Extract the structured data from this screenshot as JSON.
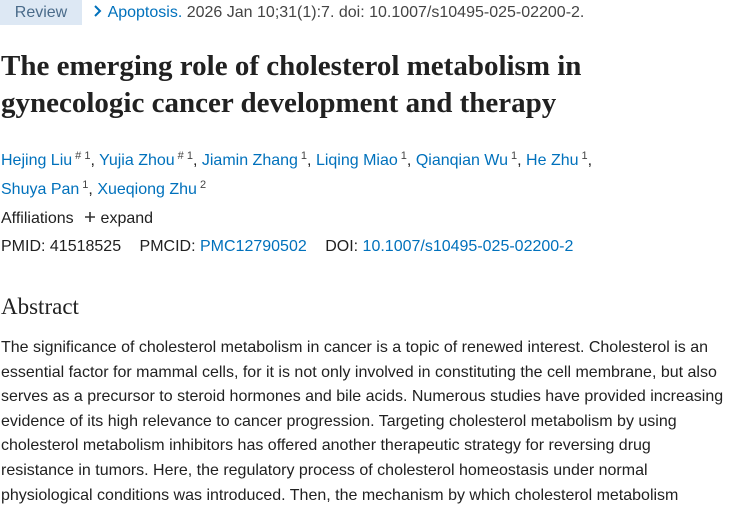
{
  "header": {
    "badge": "Review",
    "journal": "Apoptosis.",
    "citation": "2026 Jan 10;31(1):7. doi: 10.1007/s10495-025-02200-2."
  },
  "title": "The emerging role of cholesterol metabolism in gynecologic cancer development and therapy",
  "authors": {
    "separator": ",",
    "list": [
      {
        "name": "Hejing Liu",
        "sup": "# 1"
      },
      {
        "name": "Yujia Zhou",
        "sup": "# 1"
      },
      {
        "name": "Jiamin Zhang",
        "sup": "1"
      },
      {
        "name": "Liqing Miao",
        "sup": "1"
      },
      {
        "name": "Qianqian Wu",
        "sup": "1"
      },
      {
        "name": "He Zhu",
        "sup": "1"
      },
      {
        "name": "Shuya Pan",
        "sup": "1"
      },
      {
        "name": "Xueqiong Zhu",
        "sup": "2"
      }
    ]
  },
  "affiliations": {
    "label": "Affiliations",
    "action": "expand"
  },
  "identifiers": {
    "pmid_label": "PMID:",
    "pmid": "41518525",
    "pmcid_label": "PMCID:",
    "pmcid": "PMC12790502",
    "doi_label": "DOI:",
    "doi": "10.1007/s10495-025-02200-2"
  },
  "abstract": {
    "heading": "Abstract",
    "lines": [
      "The significance of cholesterol metabolism in cancer is a topic of renewed interest. Cholesterol is an",
      "essential factor for mammal cells, for it is not only involved in constituting the cell membrane, but also",
      "serves as a precursor to steroid hormones and bile acids. Numerous studies have provided increasing",
      "evidence of its high relevance to cancer progression. Targeting cholesterol metabolism by using",
      "cholesterol metabolism inhibitors has offered another therapeutic strategy for reversing drug",
      "resistance in tumors. Here, the regulatory process of cholesterol homeostasis under normal",
      "physiological conditions was introduced. Then, the mechanism by which cholesterol metabolism"
    ]
  }
}
